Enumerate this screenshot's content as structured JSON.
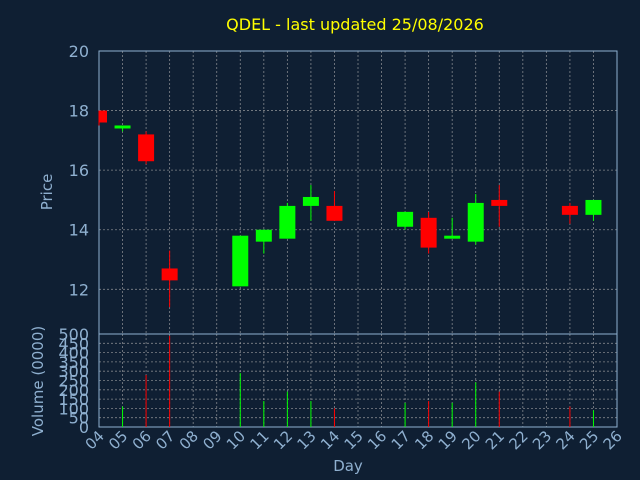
{
  "chart_data": {
    "type": "candlestick",
    "title": "QDEL - last updated 25/08/2026",
    "ylabel": "Price",
    "volume_ylabel": "Volume (0000)",
    "xlabel": "Day",
    "price_ylim": [
      10.5,
      20
    ],
    "price_ticks": [
      "20",
      "18",
      "16",
      "14",
      "12"
    ],
    "volume_ylim": [
      0,
      500
    ],
    "volume_ticks": [
      "500",
      "450",
      "400",
      "350",
      "300",
      "250",
      "200",
      "150",
      "100",
      "50",
      "0"
    ],
    "x_ticks": [
      "04",
      "05",
      "06",
      "07",
      "08",
      "09",
      "10",
      "11",
      "12",
      "13",
      "14",
      "15",
      "16",
      "17",
      "18",
      "19",
      "20",
      "21",
      "22",
      "23",
      "24",
      "25",
      "26"
    ],
    "colors": {
      "up": "#00ff00",
      "down": "#ff0000",
      "grid": "#b0b0b0",
      "axis": "#8fb0d0"
    },
    "candles": [
      {
        "day": "04",
        "open": 18.0,
        "high": 18.0,
        "low": 17.5,
        "close": 17.6,
        "volume": 0
      },
      {
        "day": "05",
        "open": 17.4,
        "high": 17.5,
        "low": 17.3,
        "close": 17.5,
        "volume": 110
      },
      {
        "day": "06",
        "open": 17.2,
        "high": 17.3,
        "low": 16.2,
        "close": 16.3,
        "volume": 280
      },
      {
        "day": "07",
        "open": 12.7,
        "high": 13.3,
        "low": 11.4,
        "close": 12.3,
        "volume": 490
      },
      {
        "day": "10",
        "open": 12.1,
        "high": 13.8,
        "low": 12.1,
        "close": 13.8,
        "volume": 290
      },
      {
        "day": "11",
        "open": 13.6,
        "high": 14.0,
        "low": 13.2,
        "close": 14.0,
        "volume": 140
      },
      {
        "day": "12",
        "open": 13.7,
        "high": 14.9,
        "low": 13.7,
        "close": 14.8,
        "volume": 190
      },
      {
        "day": "13",
        "open": 14.8,
        "high": 15.5,
        "low": 14.3,
        "close": 15.1,
        "volume": 140
      },
      {
        "day": "14",
        "open": 14.8,
        "high": 15.3,
        "low": 14.3,
        "close": 14.3,
        "volume": 100
      },
      {
        "day": "17",
        "open": 14.1,
        "high": 14.6,
        "low": 14.0,
        "close": 14.6,
        "volume": 130
      },
      {
        "day": "18",
        "open": 14.4,
        "high": 14.6,
        "low": 13.2,
        "close": 13.4,
        "volume": 140
      },
      {
        "day": "19",
        "open": 13.7,
        "high": 14.4,
        "low": 13.7,
        "close": 13.8,
        "volume": 130
      },
      {
        "day": "20",
        "open": 13.6,
        "high": 15.2,
        "low": 13.5,
        "close": 14.9,
        "volume": 240
      },
      {
        "day": "21",
        "open": 15.0,
        "high": 15.5,
        "low": 14.1,
        "close": 14.8,
        "volume": 190
      },
      {
        "day": "24",
        "open": 14.8,
        "high": 14.9,
        "low": 14.2,
        "close": 14.5,
        "volume": 110
      },
      {
        "day": "25",
        "open": 14.5,
        "high": 15.0,
        "low": 14.3,
        "close": 15.0,
        "volume": 90
      }
    ]
  }
}
